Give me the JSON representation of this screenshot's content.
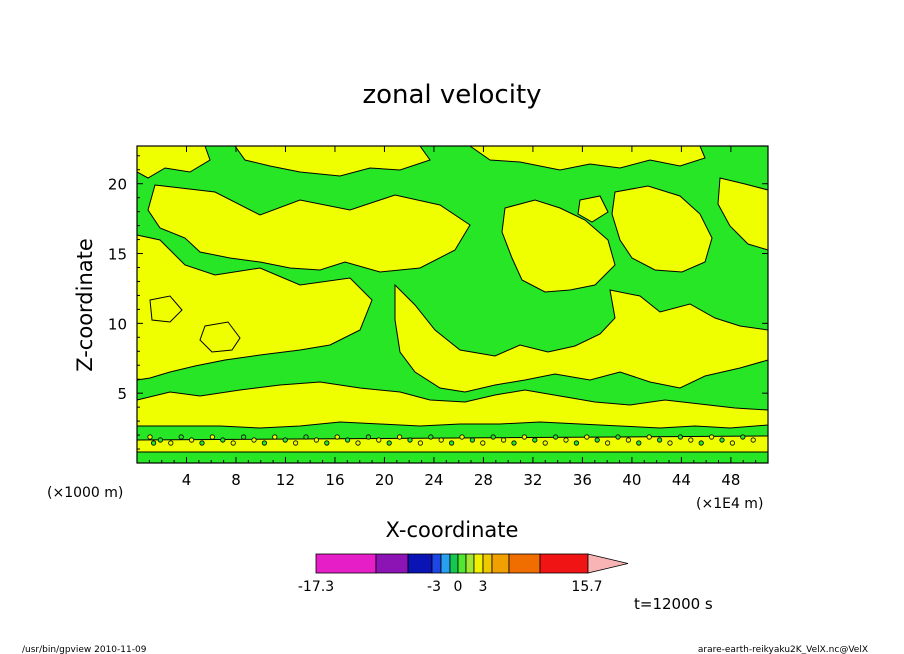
{
  "chart_data": {
    "type": "heatmap",
    "title": "zonal velocity",
    "xlabel": "X-coordinate",
    "ylabel": "Z-coordinate",
    "x_unit": "(×1E4 m)",
    "y_unit": "(×1000 m)",
    "xlim": [
      0,
      51
    ],
    "ylim": [
      0,
      22.7
    ],
    "x_ticks": [
      "4",
      "8",
      "12",
      "16",
      "20",
      "24",
      "28",
      "32",
      "36",
      "40",
      "44",
      "48"
    ],
    "y_ticks": [
      "5",
      "10",
      "15",
      "20"
    ],
    "colorbar": {
      "tick_labels": [
        "-17.3",
        "-3",
        "0",
        "3",
        "15.7"
      ],
      "colors": [
        "#e61ec8",
        "#8c14b4",
        "#0a14b4",
        "#1e46e6",
        "#28a0f0",
        "#14c850",
        "#50e632",
        "#a0e632",
        "#f0f000",
        "#f0c800",
        "#f0a000",
        "#f06e00",
        "#f01414",
        "#f08080",
        "#f8b4b4"
      ]
    },
    "field_colors": {
      "negative": "#26e626",
      "positive": "#f0ff00",
      "contour": "#000000"
    },
    "time_label": "t=12000 s"
  },
  "footer": {
    "left": "/usr/bin/gpview   2010-11-09",
    "right": "arare-earth-reikyaku2K_VelX.nc@VelX"
  }
}
